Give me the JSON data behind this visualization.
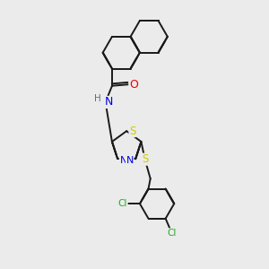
{
  "bg_color": "#ebebeb",
  "bond_color": "#1a1a1a",
  "atom_colors": {
    "N": "#0000ee",
    "O": "#ee0000",
    "S": "#cccc00",
    "Cl": "#22aa22",
    "C": "#1a1a1a",
    "H": "#607070"
  },
  "lw": 1.4,
  "fs": 7.5
}
